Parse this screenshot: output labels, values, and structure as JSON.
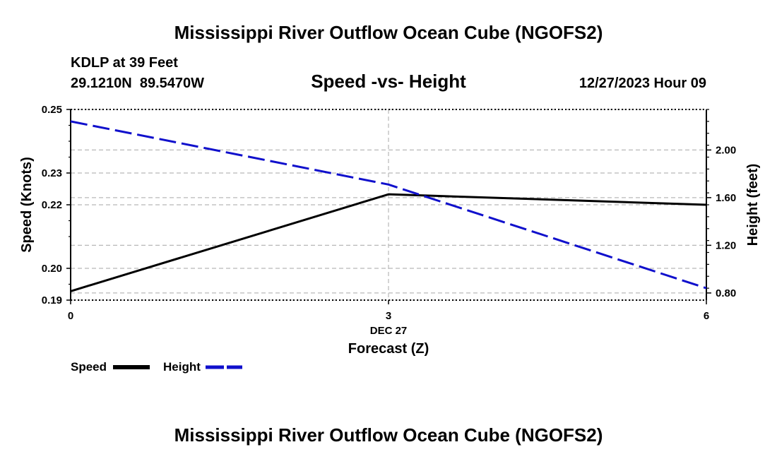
{
  "page": {
    "title": "Mississippi River Outflow Ocean Cube (NGOFS2)",
    "footer_title": "Mississippi River Outflow Ocean Cube (NGOFS2)"
  },
  "station": {
    "name": "KDLP at 39 Feet",
    "coords": "29.1210N  89.5470W",
    "datetime": "12/27/2023 Hour 09"
  },
  "chart_data": {
    "type": "line",
    "title": "Speed -vs- Height",
    "xlabel": "Forecast (Z)",
    "x_date_label": "DEC 27",
    "ylabel_left": "Speed (Knots)",
    "ylabel_right": "Height (feet)",
    "x": [
      0,
      3,
      6
    ],
    "x_tick_labels": [
      "0",
      "3",
      "6"
    ],
    "xlim": [
      0,
      6
    ],
    "ylim_left": [
      0.19,
      0.25
    ],
    "ylim_right": [
      0.74,
      2.34
    ],
    "left_ticks": [
      0.19,
      0.2,
      0.22,
      0.23,
      0.25
    ],
    "left_tick_labels": [
      "0.19",
      "0.20",
      "0.22",
      "0.23",
      "0.25"
    ],
    "left_minor_ticks": [
      0.195,
      0.21,
      0.215,
      0.235,
      0.24,
      0.245
    ],
    "right_ticks": [
      0.8,
      1.2,
      1.6,
      2.0
    ],
    "right_tick_labels": [
      "0.80",
      "1.20",
      "1.60",
      "2.00"
    ],
    "grid": true,
    "series": [
      {
        "name": "Speed",
        "axis": "left",
        "values": [
          0.1928,
          0.2233,
          0.22
        ],
        "color": "#000000",
        "style": "solid"
      },
      {
        "name": "Height",
        "axis": "right",
        "values": [
          2.24,
          1.71,
          0.84
        ],
        "color": "#1010cc",
        "style": "dashed"
      }
    ],
    "legend": [
      {
        "label": "Speed",
        "color": "#000000",
        "style": "solid"
      },
      {
        "label": "Height",
        "color": "#1010cc",
        "style": "dashed"
      }
    ],
    "legend_position": "bottom-left"
  }
}
